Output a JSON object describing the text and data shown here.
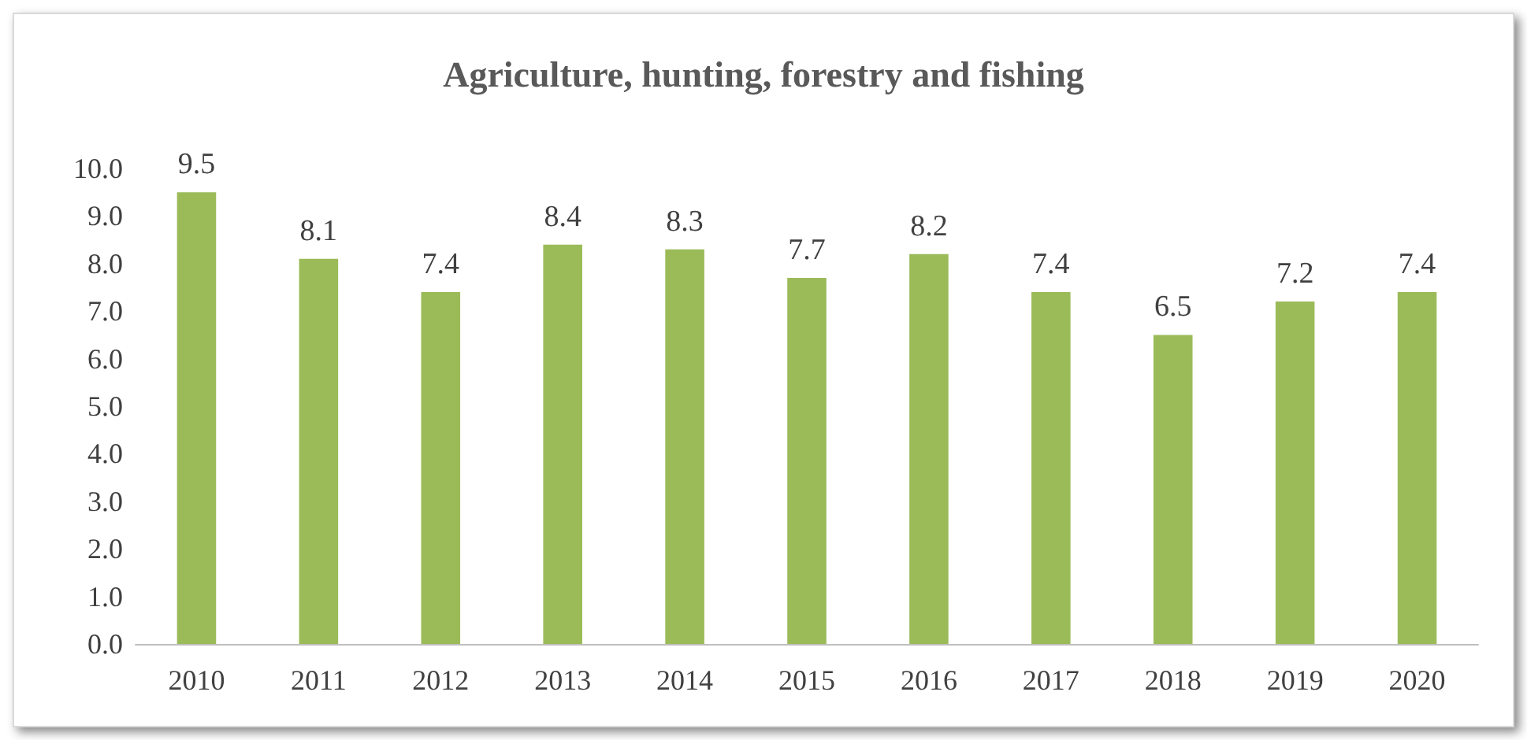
{
  "chart_data": {
    "type": "bar",
    "title": "Agriculture, hunting, forestry and fishing",
    "categories": [
      "2010",
      "2011",
      "2012",
      "2013",
      "2014",
      "2015",
      "2016",
      "2017",
      "2018",
      "2019",
      "2020"
    ],
    "values": [
      9.5,
      8.1,
      7.4,
      8.4,
      8.3,
      7.7,
      8.2,
      7.4,
      6.5,
      7.2,
      7.4
    ],
    "color": "#9bbb59",
    "data_labels": true,
    "grid": false,
    "ylim": [
      0,
      10
    ],
    "yticks": [
      {
        "value": 0,
        "label": "0.0"
      },
      {
        "value": 1,
        "label": "1.0"
      },
      {
        "value": 2,
        "label": "2.0"
      },
      {
        "value": 3,
        "label": "3.0"
      },
      {
        "value": 4,
        "label": "4.0"
      },
      {
        "value": 5,
        "label": "5.0"
      },
      {
        "value": 6,
        "label": "6.0"
      },
      {
        "value": 7,
        "label": "7.0"
      },
      {
        "value": 8,
        "label": "8.0"
      },
      {
        "value": 9,
        "label": "9.0"
      },
      {
        "value": 10,
        "label": "10.0"
      }
    ]
  }
}
